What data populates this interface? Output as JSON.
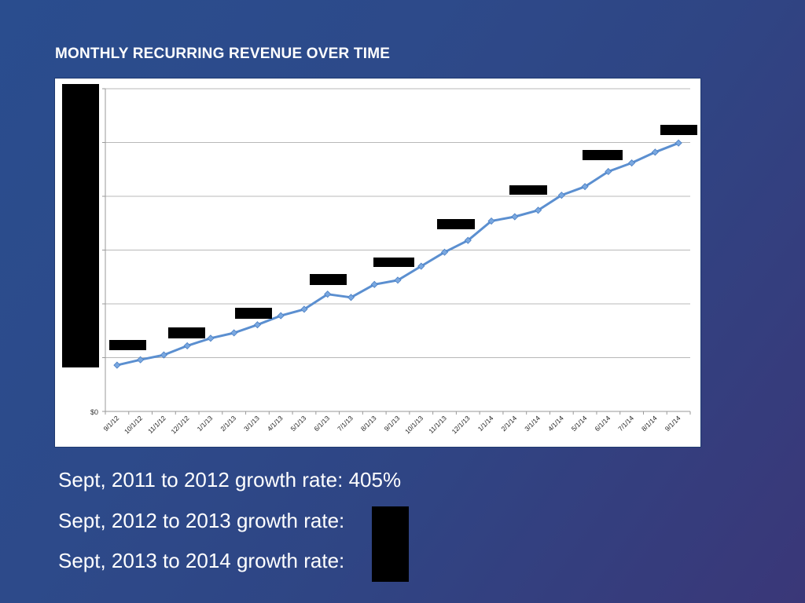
{
  "title": "MONTHLY RECURRING REVENUE OVER TIME",
  "chart_data": {
    "type": "line",
    "categories": [
      "9/1/12",
      "10/1/12",
      "11/1/12",
      "12/1/12",
      "1/1/13",
      "2/1/13",
      "3/1/13",
      "4/1/13",
      "5/1/13",
      "6/1/13",
      "7/1/13",
      "8/1/13",
      "9/1/13",
      "10/1/13",
      "11/1/13",
      "12/1/13",
      "1/1/14",
      "2/1/14",
      "3/1/14",
      "4/1/14",
      "5/1/14",
      "6/1/14",
      "7/1/14",
      "8/1/14",
      "9/1/14"
    ],
    "values": [
      0.86,
      0.96,
      1.05,
      1.22,
      1.36,
      1.46,
      1.61,
      1.78,
      1.9,
      2.18,
      2.12,
      2.36,
      2.44,
      2.7,
      2.96,
      3.18,
      3.54,
      3.62,
      3.74,
      4.02,
      4.18,
      4.46,
      4.62,
      4.82,
      4.99
    ],
    "y_units": "gridline intervals (absolute values redacted)",
    "ytick_labels": [
      "$0"
    ],
    "gridlines": 6,
    "ylim": [
      0,
      6
    ],
    "grid": true,
    "legend": "none",
    "series_color": "#5b8fd0",
    "marker_color": "#7aa8e0"
  },
  "growth_rates": [
    {
      "label": "Sept, 2011 to 2012 growth rate: ",
      "value": "405",
      "suffix": "%"
    },
    {
      "label": "Sept, 2012 to 2013 growth rate: ",
      "value": "",
      "suffix": "%"
    },
    {
      "label": "Sept, 2013 to 2014 growth rate: ",
      "value": "",
      "suffix": "%"
    }
  ]
}
